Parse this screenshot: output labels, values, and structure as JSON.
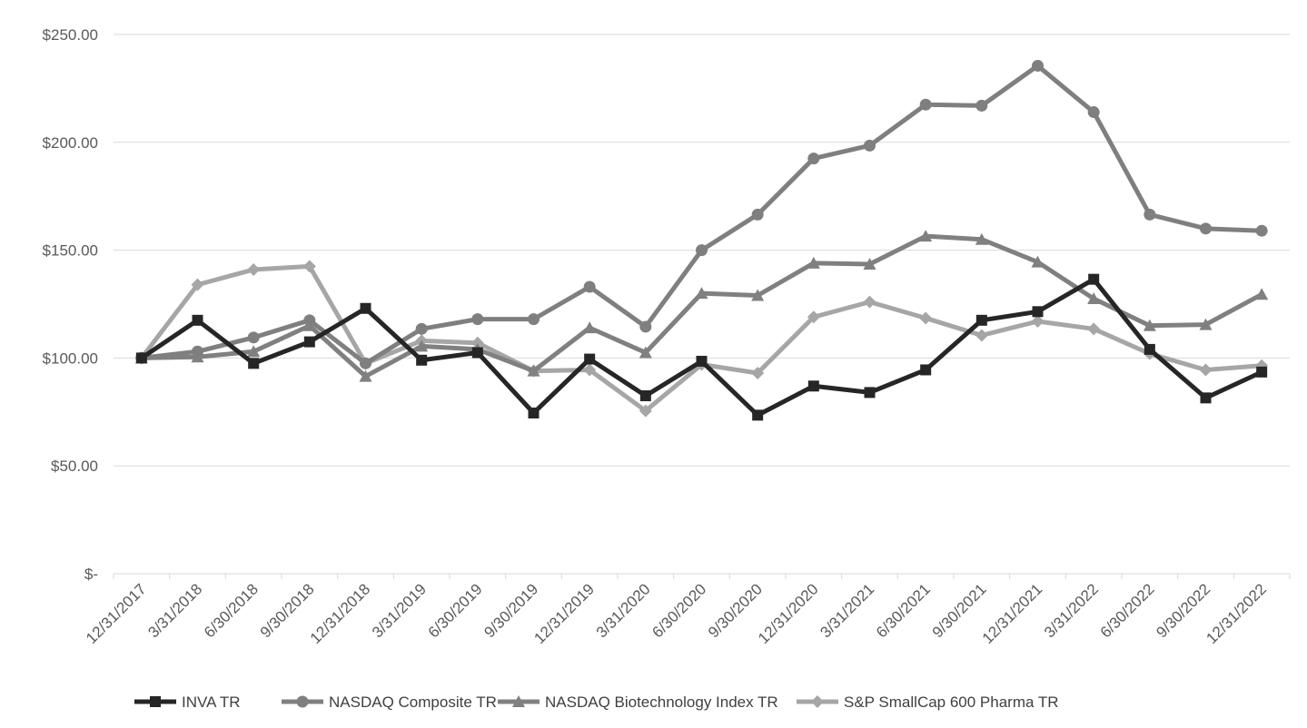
{
  "chart_data": {
    "type": "line",
    "title": "",
    "xlabel": "",
    "ylabel": "",
    "ylim": [
      0,
      250
    ],
    "y_ticks": [
      {
        "value": 250,
        "label": "$250.00"
      },
      {
        "value": 200,
        "label": "$200.00"
      },
      {
        "value": 150,
        "label": "$150.00"
      },
      {
        "value": 100,
        "label": "$100.00"
      },
      {
        "value": 50,
        "label": "$50.00"
      },
      {
        "value": 0,
        "label": "$-"
      }
    ],
    "grid": true,
    "legend_position": "bottom",
    "categories": [
      "12/31/2017",
      "3/31/2018",
      "6/30/2018",
      "9/30/2018",
      "12/31/2018",
      "3/31/2019",
      "6/30/2019",
      "9/30/2019",
      "12/31/2019",
      "3/31/2020",
      "6/30/2020",
      "9/30/2020",
      "12/31/2020",
      "3/31/2021",
      "6/30/2021",
      "9/30/2021",
      "12/31/2021",
      "3/31/2022",
      "6/30/2022",
      "9/30/2022",
      "12/31/2022"
    ],
    "series": [
      {
        "name": "INVA TR",
        "color": "#262626",
        "marker": "square",
        "values": [
          100,
          117.5,
          97.5,
          107.5,
          123,
          99,
          102.5,
          74.5,
          99.5,
          82.5,
          98.5,
          73.5,
          87,
          84,
          94.5,
          117.5,
          121.5,
          136.5,
          104,
          81.5,
          93.5
        ]
      },
      {
        "name": "NASDAQ Composite TR",
        "color": "#7f7f7f",
        "marker": "circle",
        "values": [
          100,
          103,
          109.5,
          117.5,
          97.5,
          113.5,
          118,
          118,
          133,
          114.5,
          150,
          166.5,
          192.5,
          198.5,
          217.5,
          217,
          235.5,
          214,
          166.5,
          160,
          159
        ]
      },
      {
        "name": "NASDAQ Biotechnology Index TR",
        "color": "#808080",
        "marker": "triangle",
        "values": [
          100,
          100.5,
          103,
          115,
          91.5,
          105.5,
          104,
          94,
          114,
          102.5,
          130,
          129,
          144,
          143.5,
          156.5,
          155,
          144.5,
          127.5,
          115,
          115.5,
          129.5
        ]
      },
      {
        "name": "S&P SmallCap 600 Pharma TR",
        "color": "#a6a6a6",
        "marker": "diamond",
        "values": [
          100,
          134,
          141,
          142.5,
          97.5,
          108,
          107,
          94,
          94.5,
          75.5,
          97,
          93,
          119,
          126,
          118.5,
          110.5,
          117,
          113.5,
          102,
          94.5,
          96.5
        ]
      }
    ]
  }
}
